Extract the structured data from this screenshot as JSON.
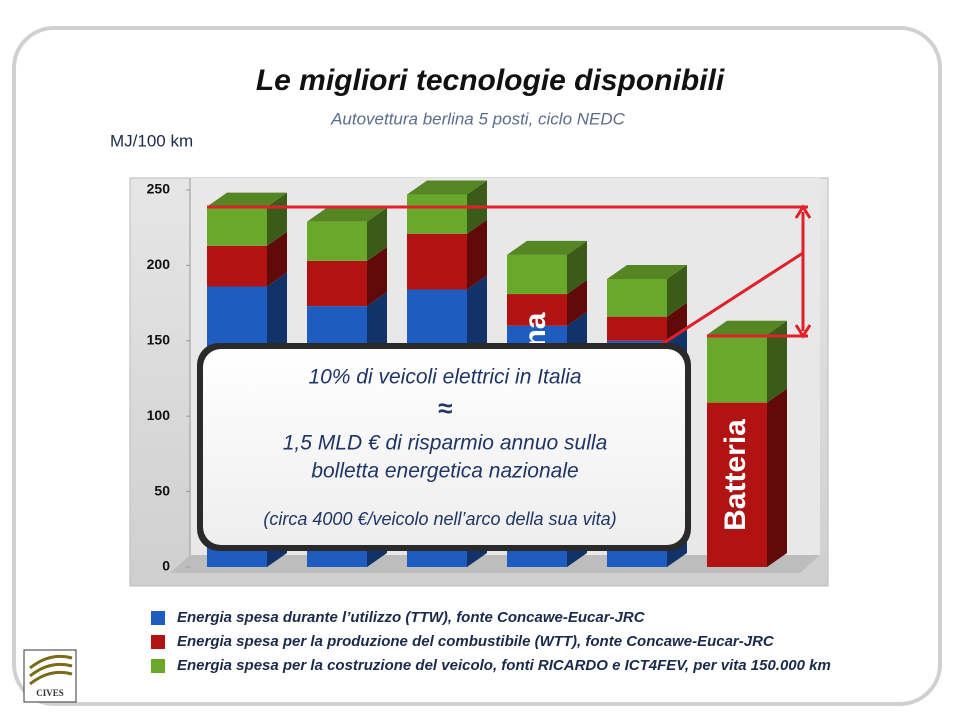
{
  "chart_data": {
    "type": "bar",
    "stacked": true,
    "title": "Le migliori tecnologie disponibili",
    "subtitle": "Autovettura berlina 5 posti, ciclo NEDC",
    "y_label": "MJ/100 km",
    "categories": [
      null,
      null,
      null,
      null,
      null,
      null
    ],
    "series": [
      {
        "name": "Energia spesa durante l’utilizzo (TTW), fonte Concawe-Eucar-JRC",
        "color": "#1f5cc0",
        "values": [
          186,
          173,
          184,
          160,
          150,
          0
        ]
      },
      {
        "name": "Energia spesa per la produzione del combustibile (WTT), fonte Concawe-Eucar-JRC",
        "color": "#b11212",
        "values": [
          27,
          30,
          37,
          21,
          16,
          109
        ]
      },
      {
        "name": "Energia spesa per la costruzione del veicolo, fonti RICARDO e ICT4FEV,  per vita 150.000 km",
        "color": "#6aa82c",
        "values": [
          26,
          26,
          26,
          26,
          25,
          45
        ]
      }
    ],
    "bar_labels": [
      null,
      null,
      null,
      "na",
      null,
      "Batteria"
    ],
    "ylim": [
      0,
      250
    ],
    "yticks": [
      0,
      50,
      100,
      150,
      200,
      250
    ],
    "grid": false,
    "annotation": {
      "lines": [
        "10% di veicoli elettrici in Italia",
        "≈",
        "1,5 MLD €  di risparmio annuo sulla",
        "bolletta energetica nazionale",
        "(circa 4000 €/veicolo nell’arco della sua vita)"
      ]
    }
  },
  "logo": "CIVES"
}
